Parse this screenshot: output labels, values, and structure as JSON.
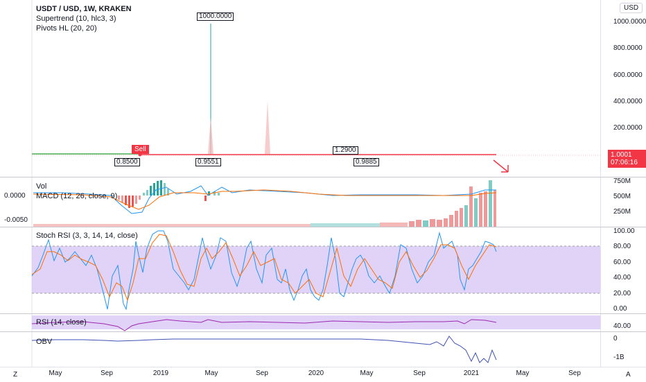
{
  "legend": {
    "symbol": "USDT / USD, 1W, KRAKEN",
    "indicator1": "Supertrend (10, hlc3, 3)",
    "indicator2": "Pivots HL (20, 20)"
  },
  "currency_button": "USD",
  "price_scale": [
    "1000.0000",
    "800.0000",
    "600.0000",
    "400.0000",
    "200.0000"
  ],
  "last_price": {
    "value": "1.0001",
    "countdown": "07:06:16"
  },
  "pivots": {
    "high_spike": "1000.0000",
    "high_mid": "1.2900",
    "low1": "0.8500",
    "low2": "0.9551",
    "low3": "0.9885"
  },
  "signal": "Sell",
  "macd_pane": {
    "vol_label": "Vol",
    "macd_label": "MACD (12, 26, close, 9)",
    "left_ticks": [
      "0.0000",
      "-0.0050"
    ],
    "right_ticks": [
      "750M",
      "500M",
      "250M"
    ]
  },
  "stoch_pane": {
    "label": "Stoch RSI (3, 3, 14, 14, close)",
    "ticks": [
      "100.00",
      "80.00",
      "60.00",
      "40.00",
      "20.00",
      "0.00"
    ]
  },
  "rsi_pane": {
    "label": "RSI (14, close)",
    "ticks": [
      "40.00"
    ]
  },
  "obv_pane": {
    "label": "OBV",
    "ticks": [
      "0",
      "-1B"
    ]
  },
  "time_axis": [
    "May",
    "Sep",
    "2019",
    "May",
    "Sep",
    "2020",
    "May",
    "Sep",
    "2021",
    "May",
    "Sep"
  ],
  "corner_left": "Z",
  "corner_right": "A",
  "colors": {
    "up": "#26a69a",
    "down": "#ef5350",
    "supertrend_down": "#f23645",
    "supertrend_up": "#4caf50",
    "stoch_k": "#2196f3",
    "stoch_d": "#f57c00",
    "rsi": "#9c27b0",
    "obv": "#3f51b5",
    "stoch_band": "#d7c4f5"
  }
}
